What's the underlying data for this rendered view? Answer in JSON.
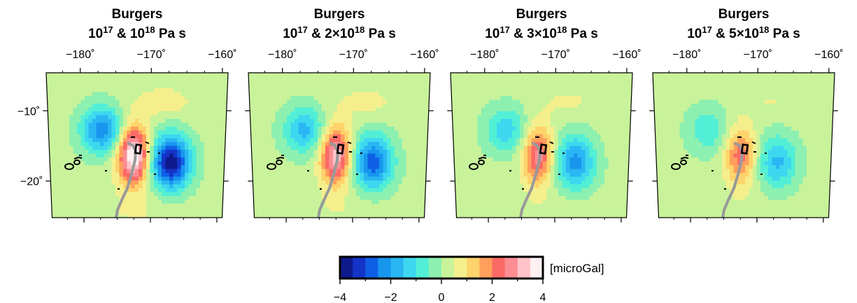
{
  "figure": {
    "panels": [
      {
        "id": "panel-1",
        "title_line1": "Burgers",
        "title_line2": {
          "a_base": "10",
          "a_exp": "17",
          "sep": " & ",
          "b_coef": "",
          "b_base": "10",
          "b_exp": "18",
          "unit": " Pa s"
        },
        "anomaly": {
          "peak_positive": 4.0,
          "peak_negative": -4.0
        }
      },
      {
        "id": "panel-2",
        "title_line1": "Burgers",
        "title_line2": {
          "a_base": "10",
          "a_exp": "17",
          "sep": " & ",
          "b_coef": "2×",
          "b_base": "10",
          "b_exp": "18",
          "unit": " Pa s"
        },
        "anomaly": {
          "peak_positive": 3.2,
          "peak_negative": -3.0
        }
      },
      {
        "id": "panel-3",
        "title_line1": "Burgers",
        "title_line2": {
          "a_base": "10",
          "a_exp": "17",
          "sep": " & ",
          "b_coef": "3×",
          "b_base": "10",
          "b_exp": "18",
          "unit": " Pa s"
        },
        "anomaly": {
          "peak_positive": 2.6,
          "peak_negative": -2.4
        }
      },
      {
        "id": "panel-4",
        "title_line1": "Burgers",
        "title_line2": {
          "a_base": "10",
          "a_exp": "17",
          "sep": " & ",
          "b_coef": "5×",
          "b_base": "10",
          "b_exp": "18",
          "unit": " Pa s"
        },
        "anomaly": {
          "peak_positive": 2.1,
          "peak_negative": -1.8
        }
      }
    ],
    "lon_ticks": [
      {
        "value": -180,
        "label": "−180˚"
      },
      {
        "value": -170,
        "label": "−170˚"
      },
      {
        "value": -160,
        "label": "−160˚"
      }
    ],
    "lat_ticks": [
      {
        "value": -10,
        "label": "−10˚"
      },
      {
        "value": -20,
        "label": "−20˚"
      }
    ],
    "colorbar": {
      "min": -4,
      "max": 4,
      "tick_labels": [
        "−4",
        "−2",
        "0",
        "2",
        "4"
      ],
      "unit_label": "[microGal]",
      "colors": [
        "#0d1a8c",
        "#1433c7",
        "#0f5fe6",
        "#1896ee",
        "#2ab6f2",
        "#3dd8ef",
        "#52efd6",
        "#8cf0b0",
        "#c8f39a",
        "#f4ef8c",
        "#ffd36b",
        "#ff9f5c",
        "#fb6a66",
        "#fc8d93",
        "#ffc3c8",
        "#fff0f2"
      ]
    }
  }
}
